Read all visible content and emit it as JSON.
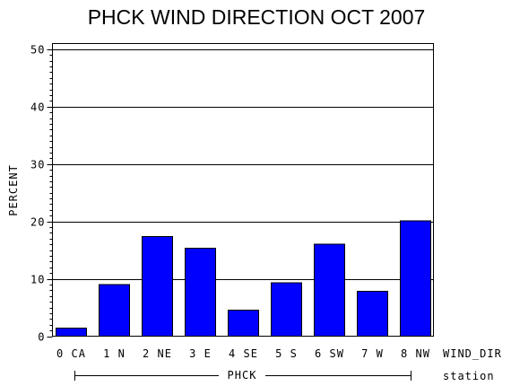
{
  "chart_data": {
    "type": "bar",
    "title": "PHCK WIND DIRECTION OCT 2007",
    "ylabel": "PERCENT",
    "xlabel": "WIND_DIR",
    "group_label": "PHCK",
    "group_axis_label": "station",
    "categories": [
      "0 CA",
      "1 N",
      "2 NE",
      "3 E",
      "4 SE",
      "5 S",
      "6 SW",
      "7 W",
      "8 NW"
    ],
    "values": [
      1.4,
      9.0,
      17.4,
      15.3,
      4.5,
      9.3,
      16.0,
      7.8,
      20.1
    ],
    "ylim": [
      0,
      51
    ],
    "yticks": [
      0,
      10,
      20,
      30,
      40,
      50
    ],
    "grid": true,
    "colors": {
      "bar": "#0000ff",
      "axis": "#000000"
    }
  }
}
